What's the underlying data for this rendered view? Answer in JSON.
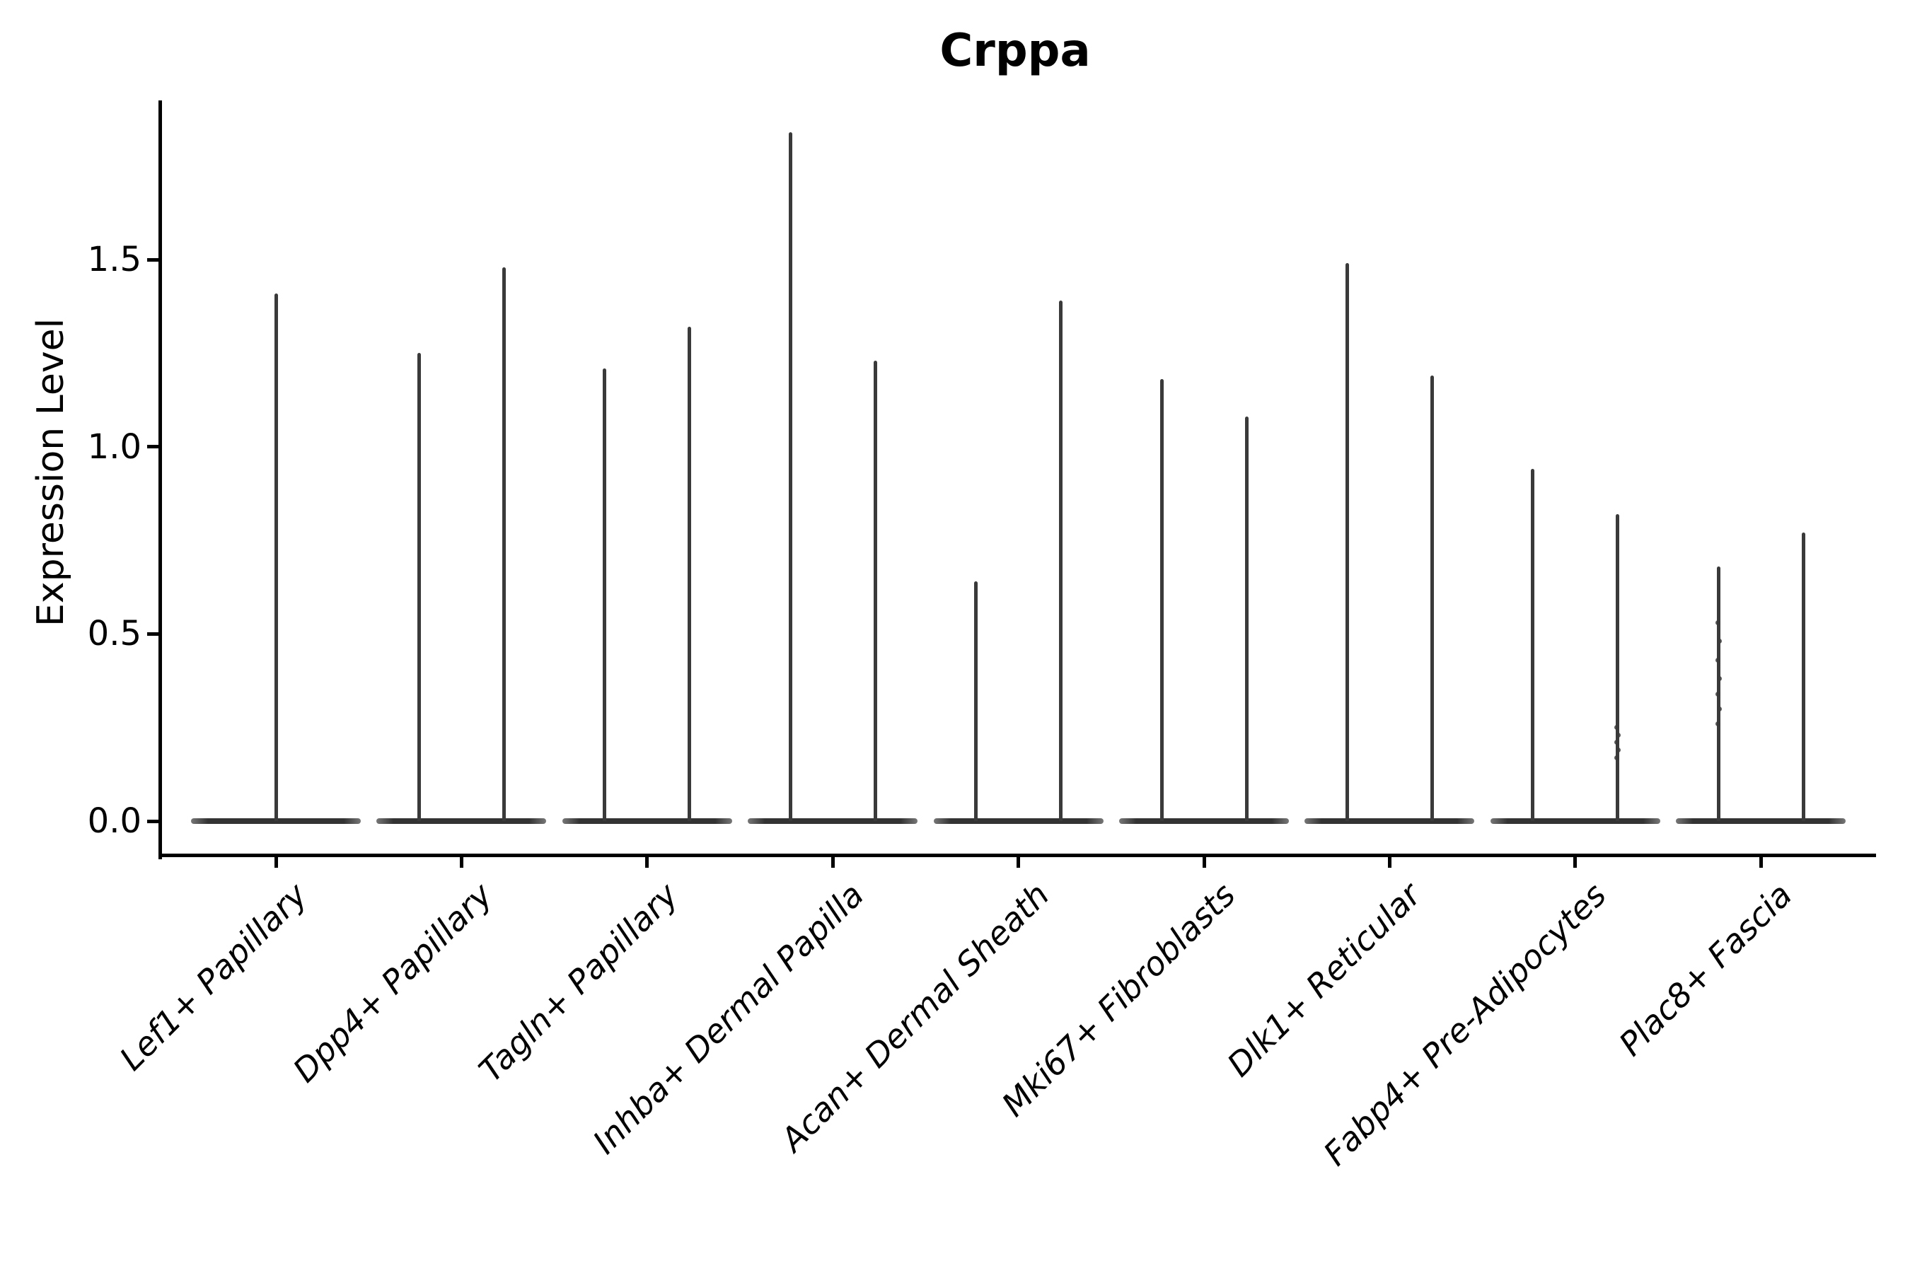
{
  "title": "Crppa",
  "ylabel": "Expression Level",
  "chart_data": {
    "type": "violin",
    "title": "Crppa",
    "xlabel": "",
    "ylabel": "Expression Level",
    "ylim": [
      -0.05,
      1.93
    ],
    "yticks": [
      0.0,
      0.5,
      1.0,
      1.5
    ],
    "ytick_labels": [
      "0.0",
      "0.5",
      "1.0",
      "1.5"
    ],
    "grid": false,
    "legend": "none",
    "categories": [
      "Lef1+ Papillary",
      "Dpp4+ Papillary",
      "Tagln+ Papillary",
      "Inhba+ Dermal Papilla",
      "Acan+ Dermal Sheath",
      "Mki67+ Fibroblasts",
      "Dlk1+ Reticular",
      "Fabp4+ Pre-Adipocytes",
      "Plac8+ Fascia"
    ],
    "description": "Violin plot of Crppa expression; each violin collapses to a wide flat base at 0 with a thin spike up to the maximum expression. The first category shows a single centered violin; all other categories show two side-by-side violins.",
    "series": [
      {
        "category": "Lef1+ Papillary",
        "spikes": [
          {
            "position": "center",
            "max": 1.41
          }
        ]
      },
      {
        "category": "Dpp4+ Papillary",
        "spikes": [
          {
            "position": "left",
            "max": 1.25
          },
          {
            "position": "right",
            "max": 1.48
          }
        ]
      },
      {
        "category": "Tagln+ Papillary",
        "spikes": [
          {
            "position": "left",
            "max": 1.21
          },
          {
            "position": "right",
            "max": 1.32
          }
        ]
      },
      {
        "category": "Inhba+ Dermal Papilla",
        "spikes": [
          {
            "position": "left",
            "max": 1.84
          },
          {
            "position": "right",
            "max": 1.23
          }
        ]
      },
      {
        "category": "Acan+ Dermal Sheath",
        "spikes": [
          {
            "position": "left",
            "max": 0.64
          },
          {
            "position": "right",
            "max": 1.39
          }
        ]
      },
      {
        "category": "Mki67+ Fibroblasts",
        "spikes": [
          {
            "position": "left",
            "max": 1.18
          },
          {
            "position": "right",
            "max": 1.08
          }
        ]
      },
      {
        "category": "Dlk1+ Reticular",
        "spikes": [
          {
            "position": "left",
            "max": 1.49
          },
          {
            "position": "right",
            "max": 1.19
          }
        ]
      },
      {
        "category": "Fabp4+ Pre-Adipocytes",
        "spikes": [
          {
            "position": "left",
            "max": 0.94
          },
          {
            "position": "right",
            "max": 0.82
          }
        ]
      },
      {
        "category": "Plac8+ Fascia",
        "spikes": [
          {
            "position": "left",
            "max": 0.68
          },
          {
            "position": "right",
            "max": 0.77
          }
        ]
      }
    ],
    "jitter_points": [
      {
        "category": "Fabp4+ Pre-Adipocytes",
        "position": "right",
        "values": [
          0.17,
          0.19,
          0.21,
          0.23,
          0.25
        ]
      },
      {
        "category": "Plac8+ Fascia",
        "position": "left",
        "values": [
          0.26,
          0.3,
          0.34,
          0.38,
          0.43,
          0.48,
          0.53
        ]
      }
    ],
    "style": {
      "violin_color": "#3a3a3a",
      "axis_color": "#000000",
      "text_color": "#000000",
      "background": "#ffffff"
    }
  }
}
